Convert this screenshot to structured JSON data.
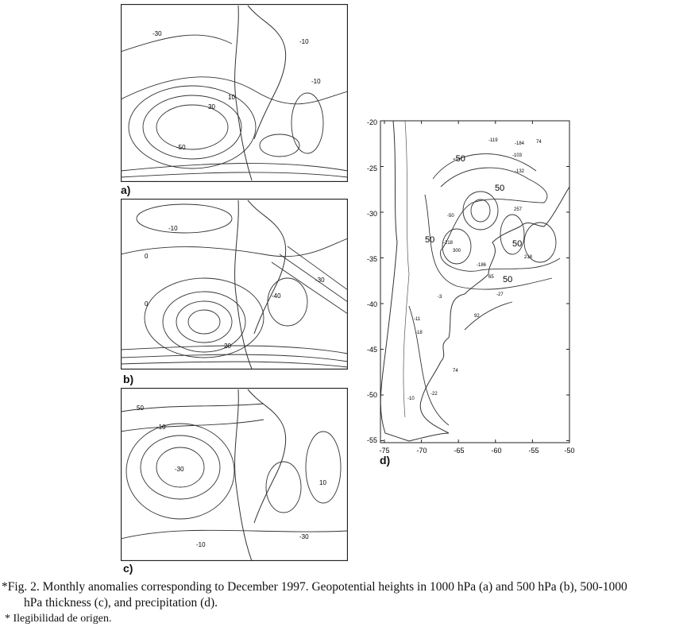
{
  "panels": [
    {
      "label": "a)",
      "contour_labels": [
        "-30",
        "-10",
        "10",
        "30",
        "-50",
        "-10"
      ]
    },
    {
      "label": "b)",
      "contour_labels": [
        "-10",
        "0",
        "-30",
        "0",
        "20",
        "-40"
      ]
    },
    {
      "label": "c)",
      "contour_labels": [
        "50",
        "-10",
        "-30",
        "10",
        "-10",
        "-30"
      ]
    },
    {
      "label": "d)",
      "y_ticks": [
        "-20",
        "-25",
        "-30",
        "-35",
        "-40",
        "-45",
        "-50",
        "-55"
      ],
      "x_ticks": [
        "-75",
        "-70",
        "-65",
        "-60",
        "-55",
        "-50"
      ],
      "contour_labels": [
        "-50",
        "50",
        "50",
        "50",
        "50"
      ],
      "station_values": [
        "-119",
        "-184",
        "74",
        "-103",
        "-132",
        "-50",
        "257",
        "-218",
        "300",
        "218",
        "-186",
        "65",
        "-27",
        "-3",
        "92",
        "-11",
        "-18",
        "74",
        "-22",
        "-10"
      ]
    }
  ],
  "caption": {
    "marker": "*",
    "text_line1": "Fig. 2. Monthly anomalies corresponding to December 1997. Geopotential heights in 1000 hPa (a) and 500 hPa (b), 500-1000",
    "text_line2": "hPa thickness (c), and precipitation (d).",
    "note": "* Ilegibilidad de origen."
  }
}
